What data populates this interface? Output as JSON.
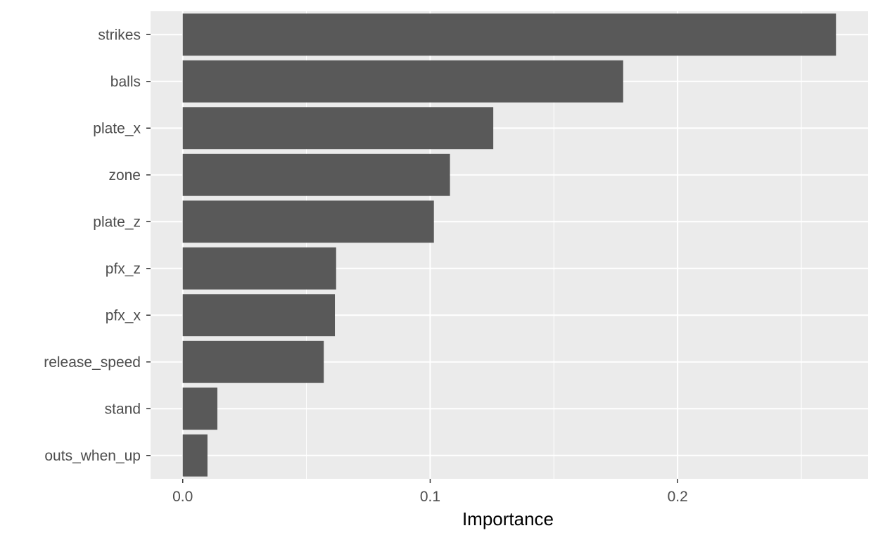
{
  "chart_data": {
    "type": "bar",
    "orientation": "horizontal",
    "title": "",
    "xlabel": "Importance",
    "ylabel": "",
    "categories": [
      "strikes",
      "balls",
      "plate_x",
      "zone",
      "plate_z",
      "pfx_z",
      "pfx_x",
      "release_speed",
      "stand",
      "outs_when_up"
    ],
    "values": [
      0.264,
      0.178,
      0.1255,
      0.108,
      0.1015,
      0.062,
      0.0615,
      0.057,
      0.014,
      0.01
    ],
    "xlim": [
      -0.013,
      0.277
    ],
    "xticks": [
      0.0,
      0.1,
      0.2
    ],
    "xtick_labels": [
      "0.0",
      "0.1",
      "0.2"
    ],
    "grid": true,
    "legend": "none",
    "colors": {
      "panel_background": "#EBEBEB",
      "grid": "#FFFFFF",
      "bar": "#595959",
      "tick_label": "#4D4D4D",
      "axis_title": "#000000"
    }
  }
}
